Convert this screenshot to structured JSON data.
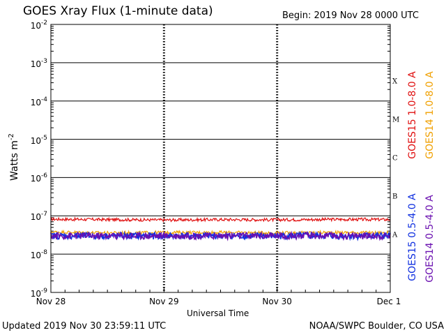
{
  "header": {
    "title": "GOES Xray Flux (1-minute data)",
    "begin": "Begin:  2019 Nov 28 0000 UTC"
  },
  "footer": {
    "updated": "Updated 2019 Nov 30 23:59:11 UTC",
    "credit": "NOAA/SWPC Boulder, CO USA"
  },
  "chart_data": {
    "type": "line",
    "xlabel": "Universal Time",
    "ylabel": "Watts m",
    "ylabel_superscript": "-2",
    "yscale": "log",
    "ylim": [
      1e-09,
      0.01
    ],
    "xlim_days": [
      0,
      3
    ],
    "x_ticks": [
      "Nov 28",
      "Nov 29",
      "Nov 30",
      "Dec 1"
    ],
    "y_ticks": [
      {
        "base": "10",
        "exp": "-9"
      },
      {
        "base": "10",
        "exp": "-8"
      },
      {
        "base": "10",
        "exp": "-7"
      },
      {
        "base": "10",
        "exp": "-6"
      },
      {
        "base": "10",
        "exp": "-5"
      },
      {
        "base": "10",
        "exp": "-4"
      },
      {
        "base": "10",
        "exp": "-3"
      },
      {
        "base": "10",
        "exp": "-2"
      }
    ],
    "flare_classes": [
      "X",
      "M",
      "C",
      "B",
      "A"
    ],
    "grid": true,
    "series": [
      {
        "name": "GOES15 1.0-8.0 A",
        "color": "#e01010",
        "level": 8e-08,
        "x": [
          0,
          0.5,
          1,
          1.5,
          2,
          2.5,
          3
        ],
        "values": [
          8.2e-08,
          8e-08,
          7.8e-08,
          8e-08,
          7.9e-08,
          8.1e-08,
          8e-08
        ]
      },
      {
        "name": "GOES14 1.0-8.0 A",
        "color": "#f0a000",
        "level": 3.7e-08,
        "x": [
          0,
          0.5,
          1,
          1.5,
          2,
          2.5,
          3
        ],
        "values": [
          3.8e-08,
          3.6e-08,
          3.7e-08,
          3.7e-08,
          3.6e-08,
          3.7e-08,
          3.6e-08
        ]
      },
      {
        "name": "GOES15 0.5-4.0 A",
        "color": "#1030e0",
        "level": 3e-08,
        "x": [
          0,
          0.5,
          1,
          1.5,
          2,
          2.5,
          3
        ],
        "values": [
          3e-08,
          3e-08,
          3e-08,
          3e-08,
          3e-08,
          3e-08,
          3e-08
        ]
      },
      {
        "name": "GOES14 0.5-4.0 A",
        "color": "#6a10b0",
        "level": 3e-08,
        "x": [
          0,
          0.5,
          1,
          1.5,
          2,
          2.5,
          3
        ],
        "values": [
          3e-08,
          3e-08,
          3e-08,
          3e-08,
          3e-08,
          3e-08,
          3e-08
        ]
      }
    ]
  }
}
